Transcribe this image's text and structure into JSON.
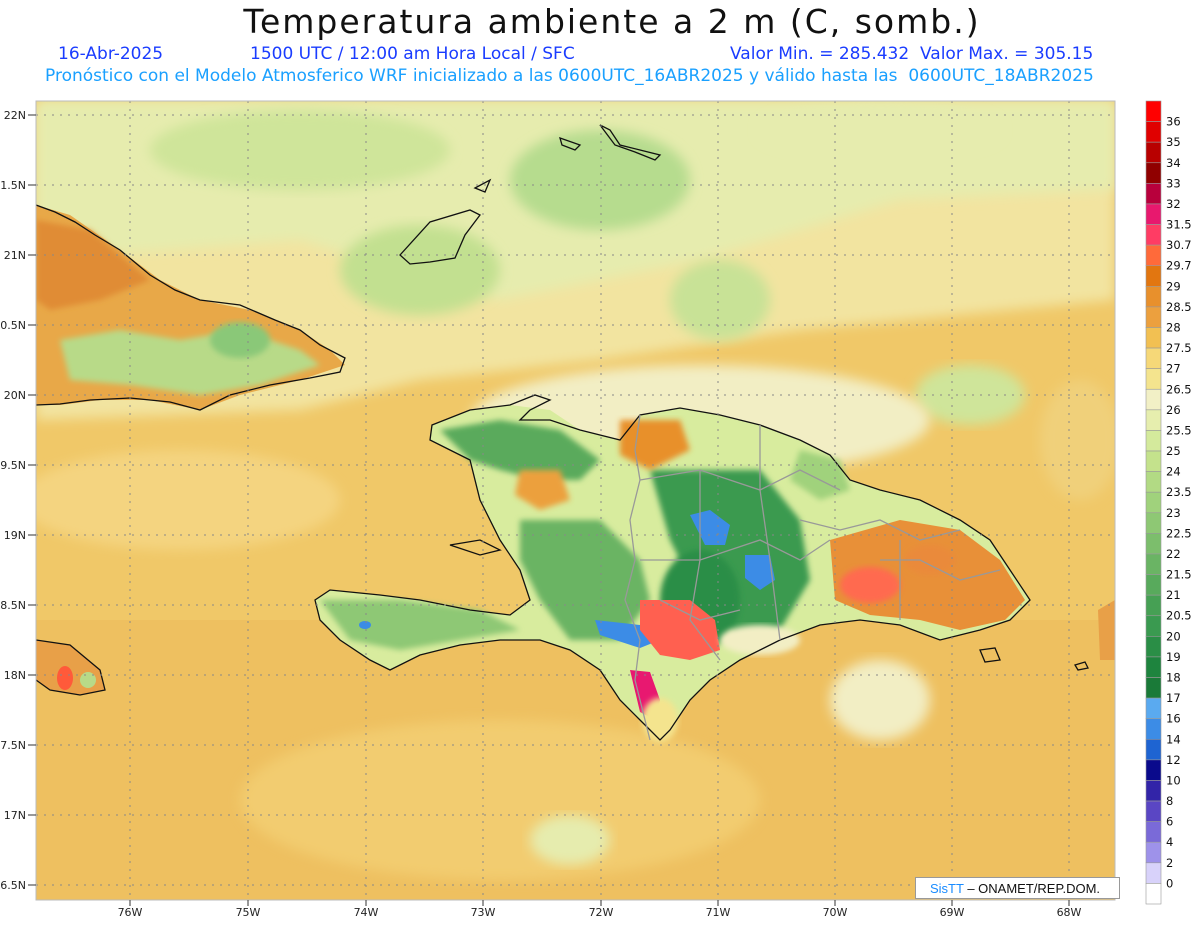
{
  "title": "Temperatura ambiente a 2 m (C, somb.)",
  "date": "16-Abr-2025",
  "time_info": "1500 UTC / 12:00 am Hora Local / SFC",
  "minmax": "Valor Min. = 285.432  Valor Max. = 305.15",
  "model_info": "Pronóstico con el Modelo Atmosferico WRF inicializado a las 0600UTC_16ABR2025 y válido hasta las  0600UTC_18ABR2025",
  "credit": {
    "brand": "SisTT",
    "org": "– ONAMET/REP.DOM."
  },
  "lat_labels": [
    "22N",
    "1.5N",
    "21N",
    "0.5N",
    "20N",
    "9.5N",
    "19N",
    "8.5N",
    "18N",
    "7.5N",
    "17N",
    "6.5N"
  ],
  "lon_labels": [
    "76W",
    "75W",
    "74W",
    "73W",
    "72W",
    "71W",
    "70W",
    "69W",
    "68W"
  ],
  "colorbar": [
    {
      "label": "36",
      "color": "#ff0000"
    },
    {
      "label": "35",
      "color": "#e00000"
    },
    {
      "label": "34",
      "color": "#b80000"
    },
    {
      "label": "33",
      "color": "#900000"
    },
    {
      "label": "32",
      "color": "#b8003c"
    },
    {
      "label": "31.5",
      "color": "#e8186e"
    },
    {
      "label": "30.7",
      "color": "#ff3c64"
    },
    {
      "label": "29.7",
      "color": "#ff6a3a"
    },
    {
      "label": "29",
      "color": "#e27610"
    },
    {
      "label": "28.5",
      "color": "#e8902c"
    },
    {
      "label": "28",
      "color": "#eca03e"
    },
    {
      "label": "27.5",
      "color": "#f2c052"
    },
    {
      "label": "27",
      "color": "#f6d878"
    },
    {
      "label": "26.5",
      "color": "#f4e48e"
    },
    {
      "label": "26",
      "color": "#f2f0c6"
    },
    {
      "label": "25.5",
      "color": "#e6eeae"
    },
    {
      "label": "25",
      "color": "#d4ea9c"
    },
    {
      "label": "24",
      "color": "#c4e28c"
    },
    {
      "label": "23.5",
      "color": "#b2da84"
    },
    {
      "label": "23",
      "color": "#a0d27c"
    },
    {
      "label": "22.5",
      "color": "#8ec874"
    },
    {
      "label": "22",
      "color": "#7cbe6c"
    },
    {
      "label": "21.5",
      "color": "#6ab464"
    },
    {
      "label": "21",
      "color": "#58aa5c"
    },
    {
      "label": "20.5",
      "color": "#46a054"
    },
    {
      "label": "20",
      "color": "#3a9a50"
    },
    {
      "label": "19",
      "color": "#2a8e46"
    },
    {
      "label": "18",
      "color": "#1e843e"
    },
    {
      "label": "17",
      "color": "#1a7a38"
    },
    {
      "label": "16",
      "color": "#5aaaf0"
    },
    {
      "label": "14",
      "color": "#3c8ce6"
    },
    {
      "label": "12",
      "color": "#1e64d2"
    },
    {
      "label": "10",
      "color": "#0a0a8c"
    },
    {
      "label": "8",
      "color": "#3224a8"
    },
    {
      "label": "6",
      "color": "#5a46c4"
    },
    {
      "label": "4",
      "color": "#7a6ad8"
    },
    {
      "label": "2",
      "color": "#9e92ea"
    },
    {
      "label": "0",
      "color": "#d8d2fa"
    },
    {
      "label": "",
      "color": "#ffffff"
    }
  ]
}
